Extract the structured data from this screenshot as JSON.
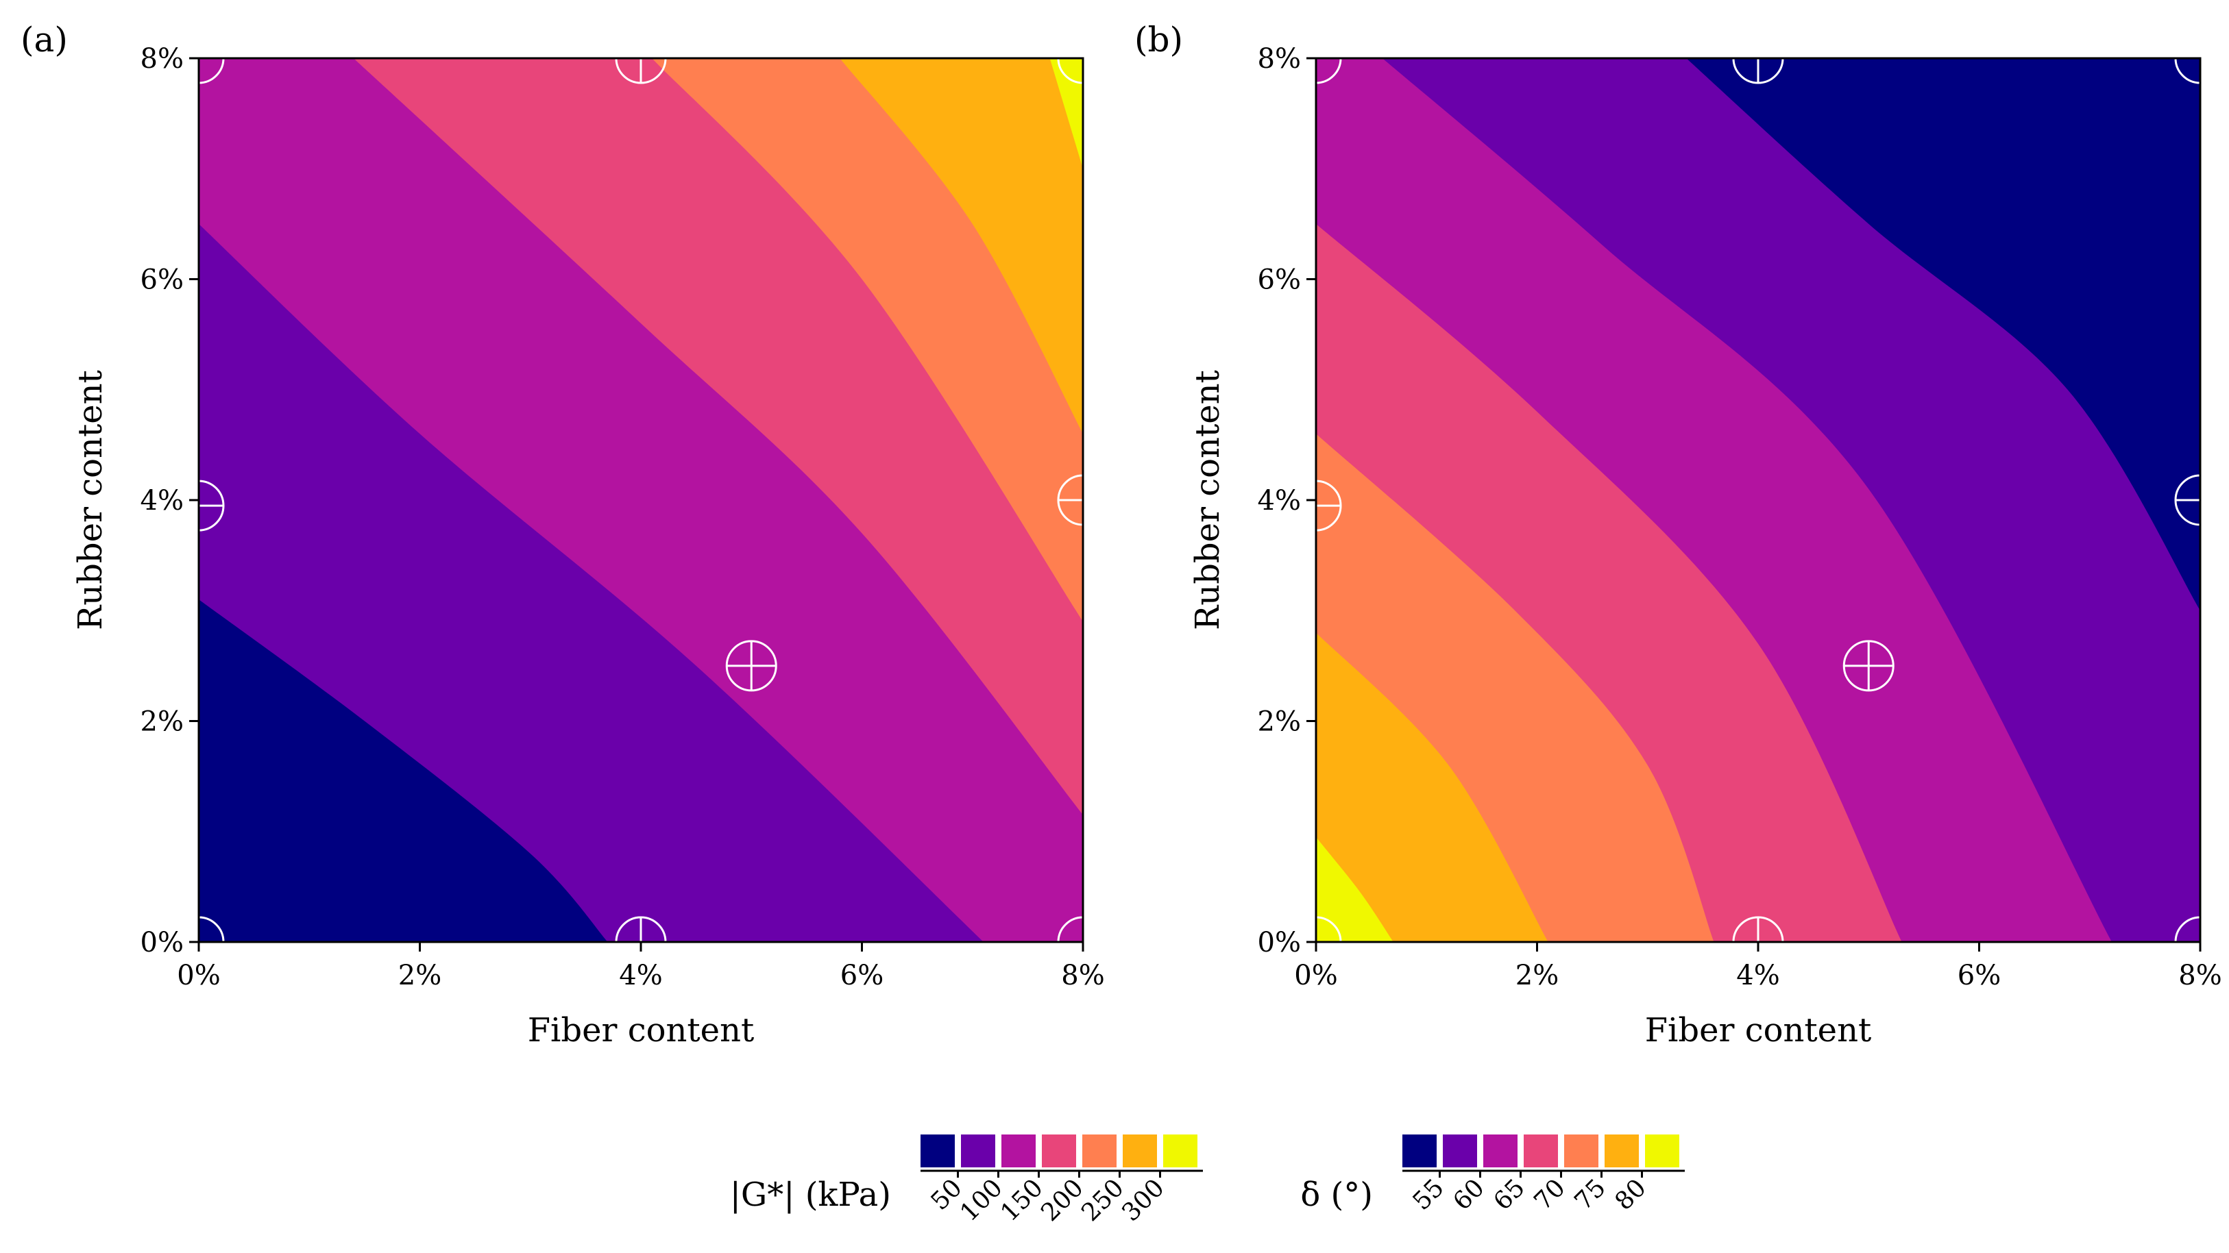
{
  "figure": {
    "panels": [
      "(a)",
      "(b)"
    ]
  },
  "colors": [
    "#0c0887",
    "#6a00a8",
    "#b12a90",
    "#e16462",
    "#fca636",
    "#f0f921"
  ],
  "palette": {
    "bands": [
      "#000080",
      "#6a00aa",
      "#b313a0",
      "#e8457a",
      "#ff7f50",
      "#ffb010",
      "#f0f800"
    ],
    "marker": "#ffffff"
  },
  "chart_data": [
    {
      "type": "contour",
      "panel_label": "(a)",
      "xlabel": "Fiber content",
      "ylabel": "Rubber content",
      "xlim": [
        0,
        8
      ],
      "ylim": [
        0,
        8
      ],
      "x_ticks": [
        0,
        2,
        4,
        6,
        8
      ],
      "y_ticks": [
        0,
        2,
        4,
        6,
        8
      ],
      "x_tick_labels": [
        "0%",
        "2%",
        "4%",
        "6%",
        "8%"
      ],
      "y_tick_labels": [
        "0%",
        "2%",
        "4%",
        "6%",
        "8%"
      ],
      "fill_variable": "|G*| (kPa)",
      "levels": [
        50,
        100,
        150,
        200,
        250,
        300
      ],
      "level_labels": [
        "50",
        "100",
        "150",
        "200",
        "250",
        "300"
      ],
      "contour_lines": [
        {
          "level": 50,
          "points": [
            [
              0,
              3.1
            ],
            [
              1.5,
              2.0
            ],
            [
              3.0,
              0.8
            ],
            [
              3.7,
              0
            ]
          ]
        },
        {
          "level": 100,
          "points": [
            [
              0,
              6.5
            ],
            [
              2.0,
              4.6
            ],
            [
              4.5,
              2.5
            ],
            [
              7.1,
              0
            ]
          ]
        },
        {
          "level": 150,
          "points": [
            [
              1.4,
              8
            ],
            [
              4.0,
              5.6
            ],
            [
              6.0,
              3.7
            ],
            [
              8.0,
              1.15
            ]
          ]
        },
        {
          "level": 200,
          "points": [
            [
              4.1,
              8
            ],
            [
              6.0,
              6.0
            ],
            [
              8.0,
              2.9
            ]
          ]
        },
        {
          "level": 250,
          "points": [
            [
              5.8,
              8
            ],
            [
              7.0,
              6.5
            ],
            [
              8.0,
              4.6
            ]
          ]
        },
        {
          "level": 300,
          "points": [
            [
              7.7,
              8
            ],
            [
              8.0,
              7.0
            ]
          ]
        }
      ],
      "design_points": [
        {
          "x": 0,
          "y": 0
        },
        {
          "x": 4,
          "y": 0
        },
        {
          "x": 8,
          "y": 0
        },
        {
          "x": 0,
          "y": 3.95
        },
        {
          "x": 8,
          "y": 4
        },
        {
          "x": 0,
          "y": 8
        },
        {
          "x": 4,
          "y": 8
        },
        {
          "x": 8,
          "y": 8
        },
        {
          "x": 5,
          "y": 2.5
        }
      ]
    },
    {
      "type": "contour",
      "panel_label": "(b)",
      "xlabel": "Fiber content",
      "ylabel": "Rubber content",
      "xlim": [
        0,
        8
      ],
      "ylim": [
        0,
        8
      ],
      "x_ticks": [
        0,
        2,
        4,
        6,
        8
      ],
      "y_ticks": [
        0,
        2,
        4,
        6,
        8
      ],
      "x_tick_labels": [
        "0%",
        "2%",
        "4%",
        "6%",
        "8%"
      ],
      "y_tick_labels": [
        "0%",
        "2%",
        "4%",
        "6%",
        "8%"
      ],
      "fill_variable": "δ (°)",
      "levels": [
        55,
        60,
        65,
        70,
        75,
        80
      ],
      "level_labels": [
        "55",
        "60",
        "65",
        "70",
        "75",
        "80"
      ],
      "contour_lines": [
        {
          "level": 55,
          "points": [
            [
              3.35,
              8
            ],
            [
              5.0,
              6.5
            ],
            [
              6.8,
              5.0
            ],
            [
              8.0,
              3.0
            ]
          ]
        },
        {
          "level": 60,
          "points": [
            [
              0.6,
              8
            ],
            [
              2.6,
              6.3
            ],
            [
              5.0,
              4.1
            ],
            [
              7.2,
              0
            ]
          ]
        },
        {
          "level": 65,
          "points": [
            [
              0,
              6.5
            ],
            [
              2.0,
              4.8
            ],
            [
              4.0,
              2.7
            ],
            [
              5.3,
              0
            ]
          ]
        },
        {
          "level": 70,
          "points": [
            [
              0,
              4.6
            ],
            [
              1.8,
              3.0
            ],
            [
              3.0,
              1.6
            ],
            [
              3.6,
              0
            ]
          ]
        },
        {
          "level": 75,
          "points": [
            [
              0,
              2.8
            ],
            [
              1.2,
              1.6
            ],
            [
              2.1,
              0
            ]
          ]
        },
        {
          "level": 80,
          "points": [
            [
              0,
              0.95
            ],
            [
              0.4,
              0.45
            ],
            [
              0.7,
              0
            ]
          ]
        }
      ],
      "design_points": [
        {
          "x": 0,
          "y": 0
        },
        {
          "x": 4,
          "y": 0
        },
        {
          "x": 8,
          "y": 0
        },
        {
          "x": 0,
          "y": 3.95
        },
        {
          "x": 8,
          "y": 4
        },
        {
          "x": 0,
          "y": 8
        },
        {
          "x": 4,
          "y": 8
        },
        {
          "x": 8,
          "y": 8
        },
        {
          "x": 5,
          "y": 2.5
        }
      ]
    }
  ]
}
